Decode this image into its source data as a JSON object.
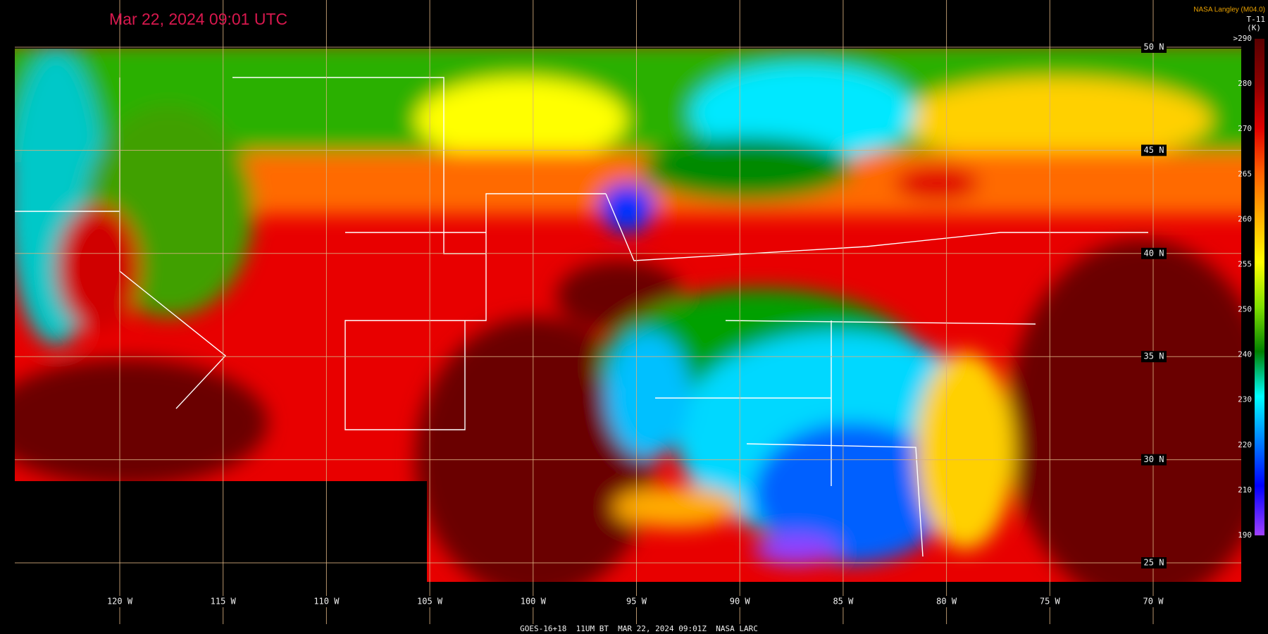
{
  "header": {
    "timestamp": "Mar 22, 2024 09:01 UTC",
    "credit": "NASA Langley (M04.0)"
  },
  "legend": {
    "title": "T-11",
    "unit": "(K)",
    "labels": [
      ">290",
      "280",
      "270",
      "265",
      "260",
      "255",
      "250",
      "240",
      "230",
      "220",
      "210",
      "190"
    ]
  },
  "map": {
    "latitude_labels": [
      "50 N",
      "45 N",
      "40 N",
      "35 N",
      "30 N",
      "25 N"
    ],
    "longitude_labels": [
      "120 W",
      "115 W",
      "110 W",
      "105 W",
      "100 W",
      "95 W",
      "90 W",
      "85 W",
      "80 W",
      "75 W",
      "70 W"
    ]
  },
  "footer": {
    "caption": "GOES-16+18  11UM BT  MAR 22, 2024 09:01Z  NASA LARC"
  }
}
